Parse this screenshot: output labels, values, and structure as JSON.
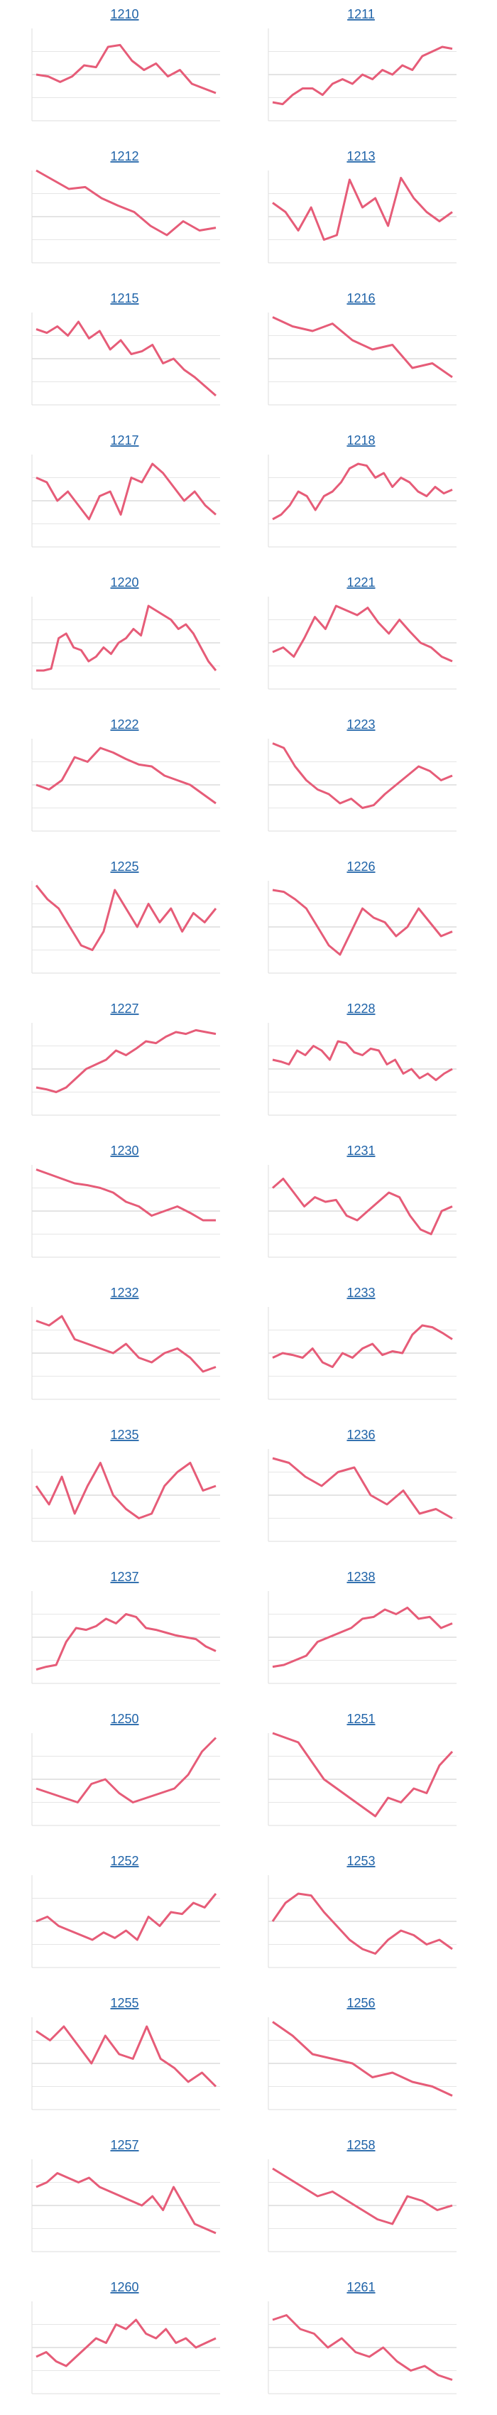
{
  "chart_data": [
    {
      "type": "line",
      "title": "1210",
      "color": "#e65c78",
      "ylim": [
        0,
        100
      ],
      "yticks": [
        25,
        50,
        75
      ],
      "grid": true,
      "values": [
        50,
        48,
        42,
        48,
        60,
        58,
        80,
        82,
        65,
        55,
        62,
        48,
        55,
        40,
        35,
        30
      ]
    },
    {
      "type": "line",
      "title": "1211",
      "color": "#e65c78",
      "ylim": [
        0,
        100
      ],
      "yticks": [
        25,
        50,
        75
      ],
      "grid": true,
      "values": [
        20,
        18,
        28,
        35,
        35,
        28,
        40,
        45,
        40,
        50,
        45,
        55,
        50,
        60,
        55,
        70,
        75,
        80,
        78
      ]
    },
    {
      "type": "line",
      "title": "1212",
      "color": "#e65c78",
      "ylim": [
        0,
        100
      ],
      "yticks": [
        25,
        50,
        75
      ],
      "grid": true,
      "values": [
        100,
        90,
        80,
        82,
        70,
        62,
        55,
        40,
        30,
        45,
        35,
        38
      ]
    },
    {
      "type": "line",
      "title": "1213",
      "color": "#e65c78",
      "ylim": [
        0,
        100
      ],
      "yticks": [
        25,
        50,
        75
      ],
      "grid": true,
      "values": [
        65,
        55,
        35,
        60,
        25,
        30,
        90,
        60,
        70,
        40,
        92,
        70,
        55,
        45,
        55
      ]
    },
    {
      "type": "line",
      "title": "1215",
      "color": "#e65c78",
      "ylim": [
        0,
        100
      ],
      "yticks": [
        25,
        50,
        75
      ],
      "grid": true,
      "values": [
        82,
        78,
        85,
        75,
        90,
        72,
        80,
        60,
        70,
        55,
        58,
        65,
        45,
        50,
        38,
        30,
        20,
        10
      ]
    },
    {
      "type": "line",
      "title": "1216",
      "color": "#e65c78",
      "ylim": [
        0,
        100
      ],
      "yticks": [
        25,
        50,
        75
      ],
      "grid": true,
      "values": [
        95,
        85,
        80,
        88,
        70,
        60,
        65,
        40,
        45,
        30
      ]
    },
    {
      "type": "line",
      "title": "1217",
      "color": "#e65c78",
      "ylim": [
        0,
        100
      ],
      "yticks": [
        25,
        50,
        75
      ],
      "grid": true,
      "values": [
        75,
        70,
        50,
        60,
        45,
        30,
        55,
        60,
        35,
        75,
        70,
        90,
        80,
        65,
        50,
        60,
        45,
        35
      ]
    },
    {
      "type": "line",
      "title": "1218",
      "color": "#e65c78",
      "ylim": [
        0,
        100
      ],
      "yticks": [
        25,
        50,
        75
      ],
      "grid": true,
      "values": [
        30,
        35,
        45,
        60,
        55,
        40,
        55,
        60,
        70,
        85,
        90,
        88,
        75,
        80,
        65,
        75,
        70,
        60,
        55,
        65,
        58,
        62
      ]
    },
    {
      "type": "line",
      "title": "1220",
      "color": "#e65c78",
      "ylim": [
        0,
        100
      ],
      "yticks": [
        25,
        50,
        75
      ],
      "grid": true,
      "values": [
        20,
        20,
        22,
        55,
        60,
        45,
        42,
        30,
        35,
        45,
        38,
        50,
        55,
        65,
        58,
        90,
        85,
        80,
        75,
        65,
        70,
        60,
        45,
        30,
        20
      ]
    },
    {
      "type": "line",
      "title": "1221",
      "color": "#e65c78",
      "ylim": [
        0,
        100
      ],
      "yticks": [
        25,
        50,
        75
      ],
      "grid": true,
      "values": [
        40,
        45,
        35,
        55,
        78,
        65,
        90,
        85,
        80,
        88,
        72,
        60,
        75,
        62,
        50,
        45,
        35,
        30
      ]
    },
    {
      "type": "line",
      "title": "1222",
      "color": "#e65c78",
      "ylim": [
        0,
        100
      ],
      "yticks": [
        25,
        50,
        75
      ],
      "grid": true,
      "values": [
        50,
        45,
        55,
        80,
        75,
        90,
        85,
        78,
        72,
        70,
        60,
        55,
        50,
        40,
        30
      ]
    },
    {
      "type": "line",
      "title": "1223",
      "color": "#e65c78",
      "ylim": [
        0,
        100
      ],
      "yticks": [
        25,
        50,
        75
      ],
      "grid": true,
      "values": [
        95,
        90,
        70,
        55,
        45,
        40,
        30,
        35,
        25,
        28,
        40,
        50,
        60,
        70,
        65,
        55,
        60
      ]
    },
    {
      "type": "line",
      "title": "1225",
      "color": "#e65c78",
      "ylim": [
        0,
        100
      ],
      "yticks": [
        25,
        50,
        75
      ],
      "grid": true,
      "values": [
        95,
        80,
        70,
        50,
        30,
        25,
        45,
        90,
        70,
        50,
        75,
        55,
        70,
        45,
        65,
        55,
        70
      ]
    },
    {
      "type": "line",
      "title": "1226",
      "color": "#e65c78",
      "ylim": [
        0,
        100
      ],
      "yticks": [
        25,
        50,
        75
      ],
      "grid": true,
      "values": [
        90,
        88,
        80,
        70,
        50,
        30,
        20,
        45,
        70,
        60,
        55,
        40,
        50,
        70,
        55,
        40,
        45
      ]
    },
    {
      "type": "line",
      "title": "1227",
      "color": "#e65c78",
      "ylim": [
        0,
        100
      ],
      "yticks": [
        25,
        50,
        75
      ],
      "grid": true,
      "values": [
        30,
        28,
        25,
        30,
        40,
        50,
        55,
        60,
        70,
        65,
        72,
        80,
        78,
        85,
        90,
        88,
        92,
        90,
        88
      ]
    },
    {
      "type": "line",
      "title": "1228",
      "color": "#e65c78",
      "ylim": [
        0,
        100
      ],
      "yticks": [
        25,
        50,
        75
      ],
      "grid": true,
      "values": [
        60,
        58,
        55,
        70,
        65,
        75,
        70,
        60,
        80,
        78,
        68,
        65,
        72,
        70,
        55,
        60,
        45,
        50,
        40,
        45,
        38,
        45,
        50
      ]
    },
    {
      "type": "line",
      "title": "1230",
      "color": "#e65c78",
      "ylim": [
        0,
        100
      ],
      "yticks": [
        25,
        50,
        75
      ],
      "grid": true,
      "values": [
        95,
        90,
        85,
        80,
        78,
        75,
        70,
        60,
        55,
        45,
        50,
        55,
        48,
        40,
        40
      ]
    },
    {
      "type": "line",
      "title": "1231",
      "color": "#e65c78",
      "ylim": [
        0,
        100
      ],
      "yticks": [
        25,
        50,
        75
      ],
      "grid": true,
      "values": [
        75,
        85,
        70,
        55,
        65,
        60,
        62,
        45,
        40,
        50,
        60,
        70,
        65,
        45,
        30,
        25,
        50,
        55
      ]
    },
    {
      "type": "line",
      "title": "1232",
      "color": "#e65c78",
      "ylim": [
        0,
        100
      ],
      "yticks": [
        25,
        50,
        75
      ],
      "grid": true,
      "values": [
        85,
        80,
        90,
        65,
        60,
        55,
        50,
        60,
        45,
        40,
        50,
        55,
        45,
        30,
        35
      ]
    },
    {
      "type": "line",
      "title": "1233",
      "color": "#e65c78",
      "ylim": [
        0,
        100
      ],
      "yticks": [
        25,
        50,
        75
      ],
      "grid": true,
      "values": [
        45,
        50,
        48,
        45,
        55,
        40,
        35,
        50,
        45,
        55,
        60,
        48,
        52,
        50,
        70,
        80,
        78,
        72,
        65
      ]
    },
    {
      "type": "line",
      "title": "1235",
      "color": "#e65c78",
      "ylim": [
        0,
        100
      ],
      "yticks": [
        25,
        50,
        75
      ],
      "grid": true,
      "values": [
        60,
        40,
        70,
        30,
        60,
        85,
        50,
        35,
        25,
        30,
        60,
        75,
        85,
        55,
        60
      ]
    },
    {
      "type": "line",
      "title": "1236",
      "color": "#e65c78",
      "ylim": [
        0,
        100
      ],
      "yticks": [
        25,
        50,
        75
      ],
      "grid": true,
      "values": [
        90,
        85,
        70,
        60,
        75,
        80,
        50,
        40,
        55,
        30,
        35,
        25
      ]
    },
    {
      "type": "line",
      "title": "1237",
      "color": "#e65c78",
      "ylim": [
        0,
        100
      ],
      "yticks": [
        25,
        50,
        75
      ],
      "grid": true,
      "values": [
        15,
        18,
        20,
        45,
        60,
        58,
        62,
        70,
        65,
        75,
        72,
        60,
        58,
        55,
        52,
        50,
        48,
        40,
        35
      ]
    },
    {
      "type": "line",
      "title": "1238",
      "color": "#e65c78",
      "ylim": [
        0,
        100
      ],
      "yticks": [
        25,
        50,
        75
      ],
      "grid": true,
      "values": [
        18,
        20,
        25,
        30,
        45,
        50,
        55,
        60,
        70,
        72,
        80,
        75,
        82,
        70,
        72,
        60,
        65
      ]
    },
    {
      "type": "line",
      "title": "1250",
      "color": "#e65c78",
      "ylim": [
        0,
        100
      ],
      "yticks": [
        25,
        50,
        75
      ],
      "grid": true,
      "values": [
        40,
        35,
        30,
        25,
        45,
        50,
        35,
        25,
        30,
        35,
        40,
        55,
        80,
        95
      ]
    },
    {
      "type": "line",
      "title": "1251",
      "color": "#e65c78",
      "ylim": [
        0,
        100
      ],
      "yticks": [
        25,
        50,
        75
      ],
      "grid": true,
      "values": [
        100,
        95,
        90,
        70,
        50,
        40,
        30,
        20,
        10,
        30,
        25,
        40,
        35,
        65,
        80
      ]
    },
    {
      "type": "line",
      "title": "1252",
      "color": "#e65c78",
      "ylim": [
        0,
        100
      ],
      "yticks": [
        25,
        50,
        75
      ],
      "grid": true,
      "values": [
        50,
        55,
        45,
        40,
        35,
        30,
        38,
        32,
        40,
        30,
        55,
        45,
        60,
        58,
        70,
        65,
        80
      ]
    },
    {
      "type": "line",
      "title": "1253",
      "color": "#e65c78",
      "ylim": [
        0,
        100
      ],
      "yticks": [
        25,
        50,
        75
      ],
      "grid": true,
      "values": [
        50,
        70,
        80,
        78,
        60,
        45,
        30,
        20,
        15,
        30,
        40,
        35,
        25,
        30,
        20
      ]
    },
    {
      "type": "line",
      "title": "1255",
      "color": "#e65c78",
      "ylim": [
        0,
        100
      ],
      "yticks": [
        25,
        50,
        75
      ],
      "grid": true,
      "values": [
        85,
        75,
        90,
        70,
        50,
        80,
        60,
        55,
        90,
        55,
        45,
        30,
        40,
        25
      ]
    },
    {
      "type": "line",
      "title": "1256",
      "color": "#e65c78",
      "ylim": [
        0,
        100
      ],
      "yticks": [
        25,
        50,
        75
      ],
      "grid": true,
      "values": [
        95,
        80,
        60,
        55,
        50,
        35,
        40,
        30,
        25,
        15
      ]
    },
    {
      "type": "line",
      "title": "1257",
      "color": "#e65c78",
      "ylim": [
        0,
        100
      ],
      "yticks": [
        25,
        50,
        75
      ],
      "grid": true,
      "values": [
        70,
        75,
        85,
        80,
        75,
        80,
        70,
        65,
        60,
        55,
        50,
        60,
        45,
        70,
        50,
        30,
        25,
        20
      ]
    },
    {
      "type": "line",
      "title": "1258",
      "color": "#e65c78",
      "ylim": [
        0,
        100
      ],
      "yticks": [
        25,
        50,
        75
      ],
      "grid": true,
      "values": [
        90,
        80,
        70,
        60,
        65,
        55,
        45,
        35,
        30,
        60,
        55,
        45,
        50
      ]
    },
    {
      "type": "line",
      "title": "1260",
      "color": "#e65c78",
      "ylim": [
        0,
        100
      ],
      "yticks": [
        25,
        50,
        75
      ],
      "grid": true,
      "values": [
        40,
        45,
        35,
        30,
        40,
        50,
        60,
        55,
        75,
        70,
        80,
        65,
        60,
        70,
        55,
        60,
        50,
        55,
        60
      ]
    },
    {
      "type": "line",
      "title": "1261",
      "color": "#e65c78",
      "ylim": [
        0,
        100
      ],
      "yticks": [
        25,
        50,
        75
      ],
      "grid": true,
      "values": [
        80,
        85,
        70,
        65,
        50,
        60,
        45,
        40,
        50,
        35,
        25,
        30,
        20,
        15
      ]
    }
  ]
}
